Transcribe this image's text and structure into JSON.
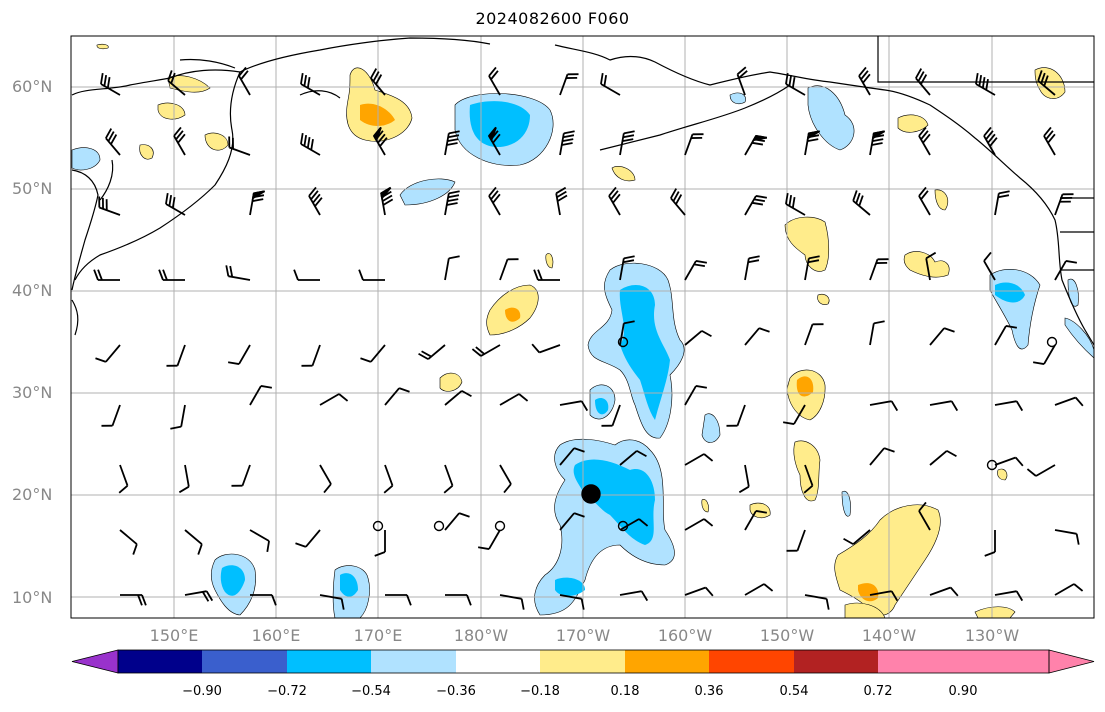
{
  "title": "2024082600 F060",
  "lat_labels": [
    "60°N",
    "50°N",
    "40°N",
    "30°N",
    "20°N",
    "10°N"
  ],
  "lon_labels": [
    "150°E",
    "160°E",
    "170°E",
    "180°W",
    "170°W",
    "160°W",
    "150°W",
    "140°W",
    "130°W"
  ],
  "colorbar": {
    "labels": [
      "−0.90",
      "−0.72",
      "−0.54",
      "−0.36",
      "−0.18",
      "0.18",
      "0.36",
      "0.54",
      "0.72",
      "0.90"
    ],
    "colors": [
      "#9932cc",
      "#00008b",
      "#3a5fcd",
      "#00bfff",
      "#b0e2ff",
      "#ffffff",
      "#ffec8b",
      "#ffa500",
      "#ff4500",
      "#b22222",
      "#ff82ab"
    ]
  },
  "map": {
    "lat_range": [
      8,
      65
    ],
    "lon_range_east": [
      140,
      240
    ],
    "gridlines": true,
    "shading_colors": {
      "light_blue": "#b0e2ff",
      "blue": "#00bfff",
      "light_yellow": "#ffec8b",
      "orange": "#ffa500"
    }
  }
}
